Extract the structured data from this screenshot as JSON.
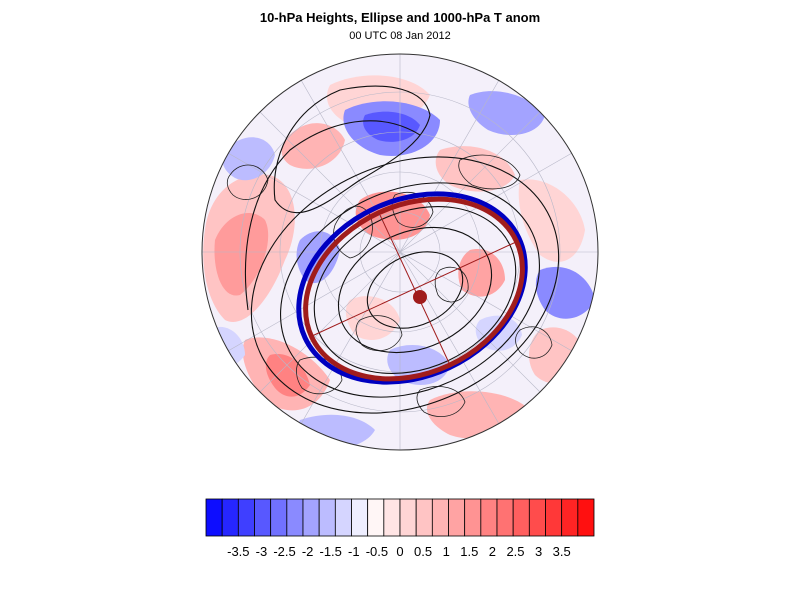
{
  "map": {
    "title": "10-hPa Heights, Ellipse and 1000-hPa T anom",
    "subtitle": "00 UTC 08 Jan 2012",
    "projection": "polar stereographic, northern hemisphere",
    "ellipse_color": "#a01c1c",
    "center_marker_color": "#a01c1c",
    "vortex_edge_color": "#0000c0"
  },
  "colorbar": {
    "tick_labels": [
      "-3.5",
      "-3",
      "-2.5",
      "-2",
      "-1.5",
      "-1",
      "-0.5",
      "0",
      "0.5",
      "1",
      "1.5",
      "2",
      "2.5",
      "3",
      "3.5"
    ],
    "colors": [
      "#0d0dff",
      "#2626ff",
      "#3f3fff",
      "#5858ff",
      "#7171ff",
      "#8a8aff",
      "#a3a3ff",
      "#bcbcff",
      "#d5d5ff",
      "#eeeeff",
      "#fff6f6",
      "#ffe5e5",
      "#ffd5d5",
      "#ffc4c4",
      "#ffb4b4",
      "#ffa3a3",
      "#ff9393",
      "#ff8282",
      "#ff7272",
      "#ff5f5f",
      "#ff4c4c",
      "#ff3838",
      "#ff2424",
      "#ff1010"
    ]
  }
}
